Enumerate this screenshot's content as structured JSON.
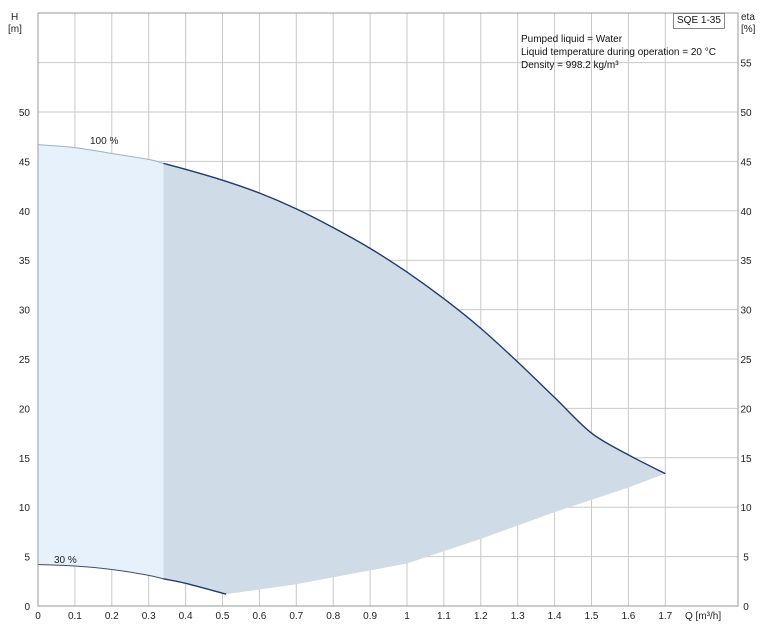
{
  "info": {
    "line1": "Pumped liquid = Water",
    "line2": "Liquid temperature during operation = 20 °C",
    "line3": "Density = 998.2 kg/m³"
  },
  "model_label": "SQE 1-35",
  "chart_data": {
    "type": "area",
    "title": "",
    "x_axis": {
      "label": "Q [m³/h]",
      "min": 0,
      "max": 1.8,
      "ticks": [
        0,
        0.1,
        0.2,
        0.3,
        0.4,
        0.5,
        0.6,
        0.7,
        0.8,
        0.9,
        1,
        1.1,
        1.2,
        1.3,
        1.4,
        1.5,
        1.6,
        1.7
      ]
    },
    "y_axis_left": {
      "label_top": "H",
      "label_unit": "[m]",
      "min": 0,
      "max": 60,
      "ticks": [
        0,
        5,
        10,
        15,
        20,
        25,
        30,
        35,
        40,
        45,
        50
      ]
    },
    "y_axis_right": {
      "label_top": "eta",
      "label_unit": "[%]",
      "min": 0,
      "max": 60,
      "ticks": [
        0,
        5,
        10,
        15,
        20,
        25,
        30,
        35,
        40,
        45,
        50,
        55
      ]
    },
    "grid": true,
    "curve_100": {
      "label": "100 %",
      "points": [
        [
          0,
          46.7
        ],
        [
          0.1,
          46.4
        ],
        [
          0.2,
          45.8
        ],
        [
          0.3,
          45.2
        ],
        [
          0.34,
          44.8
        ],
        [
          0.4,
          44.2
        ],
        [
          0.5,
          43.1
        ],
        [
          0.6,
          41.8
        ],
        [
          0.7,
          40.2
        ],
        [
          0.8,
          38.3
        ],
        [
          0.9,
          36.2
        ],
        [
          1.0,
          33.8
        ],
        [
          1.1,
          31.1
        ],
        [
          1.2,
          28.1
        ],
        [
          1.3,
          24.7
        ],
        [
          1.4,
          21.1
        ],
        [
          1.5,
          17.5
        ],
        [
          1.6,
          15.3
        ],
        [
          1.7,
          13.4
        ]
      ]
    },
    "curve_30": {
      "label": "30 %",
      "points": [
        [
          0,
          4.2
        ],
        [
          0.1,
          4.05
        ],
        [
          0.2,
          3.7
        ],
        [
          0.3,
          3.1
        ],
        [
          0.34,
          2.75
        ],
        [
          0.4,
          2.3
        ],
        [
          0.51,
          1.2
        ]
      ]
    },
    "min_flow_boundary": 0.34,
    "shaded_lower_edge": [
      [
        0.51,
        1.2
      ],
      [
        0.7,
        2.2
      ],
      [
        0.9,
        3.6
      ],
      [
        1.0,
        4.3
      ],
      [
        1.2,
        6.8
      ],
      [
        1.4,
        9.5
      ],
      [
        1.6,
        12.0
      ],
      [
        1.7,
        13.4
      ]
    ],
    "colors": {
      "curve": "#1f3a6e",
      "light_fill": "#e6f1fb",
      "dark_fill": "#cfdce8",
      "grid": "#c9c9c9"
    }
  }
}
